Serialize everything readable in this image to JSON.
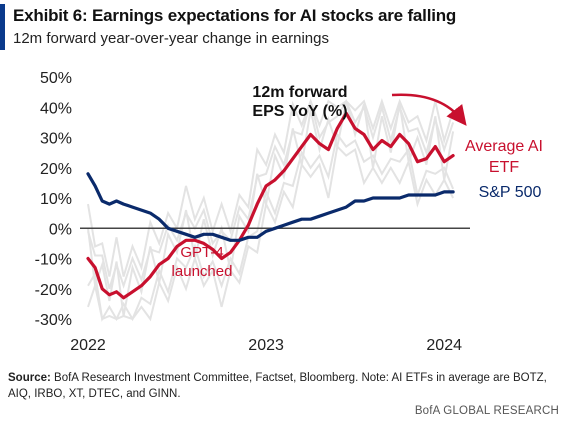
{
  "header": {
    "title": "Exhibit 6: Earnings expectations for AI stocks are falling",
    "subtitle": "12m forward year-over-year change in earnings"
  },
  "footer": {
    "source_label": "Source:",
    "source_text": "BofA Research Investment Committee, Factset, Bloomberg. Note: AI ETFs in average are BOTZ, AIQ, IRBO, XT, DTEC, and GINN.",
    "brand": "BofA GLOBAL RESEARCH"
  },
  "chart_data": {
    "type": "line",
    "title": "Exhibit 6: Earnings expectations for AI stocks are falling",
    "subtitle": "12m forward year-over-year change in earnings",
    "x_ticks": [
      "2022",
      "2023",
      "2024"
    ],
    "y_ticks": [
      "50%",
      "40%",
      "30%",
      "20%",
      "10%",
      "0%",
      "-10%",
      "-20%",
      "-30%"
    ],
    "xlim": [
      2022.0,
      2024.1
    ],
    "ylim": [
      -30,
      50
    ],
    "zero_line": true,
    "grid": false,
    "colors": {
      "average_ai_etf": "#c8102e",
      "sp500": "#0a2a6b",
      "individual_etfs": "#e3e3e3"
    },
    "series": [
      {
        "name": "Average AI ETF",
        "x": [
          2022.0,
          2022.04,
          2022.08,
          2022.12,
          2022.16,
          2022.2,
          2022.25,
          2022.3,
          2022.35,
          2022.4,
          2022.45,
          2022.5,
          2022.55,
          2022.6,
          2022.65,
          2022.7,
          2022.75,
          2022.8,
          2022.85,
          2022.9,
          2022.95,
          2023.0,
          2023.05,
          2023.1,
          2023.15,
          2023.2,
          2023.25,
          2023.3,
          2023.35,
          2023.4,
          2023.45,
          2023.5,
          2023.55,
          2023.6,
          2023.65,
          2023.7,
          2023.75,
          2023.8,
          2023.85,
          2023.9,
          2023.95,
          2024.0,
          2024.05
        ],
        "values": [
          -10,
          -13,
          -20,
          -22,
          -21,
          -23,
          -21,
          -19,
          -16,
          -12,
          -10,
          -6,
          -4,
          -4,
          -5,
          -7,
          -10,
          -8,
          -4,
          1,
          8,
          14,
          16,
          19,
          23,
          27,
          31,
          28,
          26,
          33,
          38,
          33,
          31,
          26,
          29,
          27,
          31,
          28,
          22,
          23,
          27,
          22,
          24
        ]
      },
      {
        "name": "S&P 500",
        "x": [
          2022.0,
          2022.04,
          2022.08,
          2022.12,
          2022.16,
          2022.2,
          2022.25,
          2022.3,
          2022.35,
          2022.4,
          2022.45,
          2022.5,
          2022.55,
          2022.6,
          2022.65,
          2022.7,
          2022.75,
          2022.8,
          2022.85,
          2022.9,
          2022.95,
          2023.0,
          2023.05,
          2023.1,
          2023.15,
          2023.2,
          2023.25,
          2023.3,
          2023.35,
          2023.4,
          2023.45,
          2023.5,
          2023.55,
          2023.6,
          2023.65,
          2023.7,
          2023.75,
          2023.8,
          2023.85,
          2023.9,
          2023.95,
          2024.0,
          2024.05
        ],
        "values": [
          18,
          14,
          9,
          8,
          9,
          8,
          7,
          6,
          5,
          3,
          0,
          -1,
          -2,
          -3,
          -2,
          -2,
          -3,
          -4,
          -4,
          -3,
          -3,
          -1,
          0,
          1,
          2,
          3,
          3,
          4,
          5,
          6,
          7,
          9,
          9,
          10,
          10,
          10,
          10,
          11,
          11,
          11,
          11,
          12,
          12
        ]
      }
    ],
    "annotations": [
      {
        "text_lines": [
          "12m forward",
          "EPS YoY (%)"
        ]
      },
      {
        "text_lines": [
          "GPT-4",
          "launched"
        ]
      },
      {
        "text_lines": [
          "Average AI",
          "ETF"
        ]
      },
      {
        "text_lines": [
          "S&P 500"
        ]
      }
    ]
  }
}
